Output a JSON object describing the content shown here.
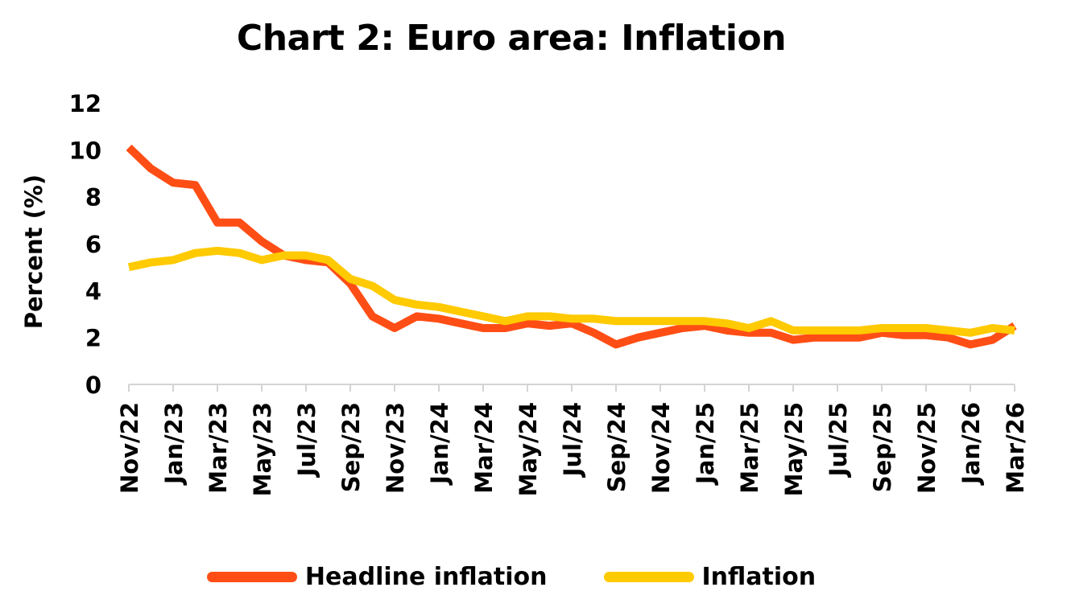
{
  "chart_data": {
    "type": "line",
    "title": "Chart 2: Euro area: Inflation",
    "ylabel": "Percent (%)",
    "xlabel": "",
    "ylim": [
      0,
      12
    ],
    "yticks": [
      0,
      2,
      4,
      6,
      8,
      10,
      12
    ],
    "x": [
      "Nov/22",
      "Dec/22",
      "Jan/23",
      "Feb/23",
      "Mar/23",
      "Apr/23",
      "May/23",
      "Jun/23",
      "Jul/23",
      "Aug/23",
      "Sep/23",
      "Oct/23",
      "Nov/23",
      "Dec/23",
      "Jan/24",
      "Feb/24",
      "Mar/24",
      "Apr/24",
      "May/24",
      "Jun/24",
      "Jul/24",
      "Aug/24",
      "Sep/24",
      "Oct/24",
      "Nov/24",
      "Dec/24",
      "Jan/25",
      "Feb/25",
      "Mar/25",
      "Apr/25",
      "May/25",
      "Jun/25",
      "Jul/25",
      "Aug/25",
      "Sep/25",
      "Oct/25",
      "Nov/25",
      "Dec/25",
      "Jan/26",
      "Feb/26",
      "Mar/26"
    ],
    "xtick_labels": [
      "Nov/22",
      "Jan/23",
      "Mar/23",
      "May/23",
      "Jul/23",
      "Sep/23",
      "Nov/23",
      "Jan/24",
      "Mar/24",
      "May/24",
      "Jul/24",
      "Sep/24",
      "Nov/24",
      "Jan/25",
      "Mar/25",
      "May/25",
      "Jul/25",
      "Sep/25",
      "Nov/25",
      "Jan/26",
      "Mar/26"
    ],
    "series": [
      {
        "name": "Headline inflation",
        "color": "#FF4E15",
        "values": [
          10.1,
          9.2,
          8.6,
          8.5,
          6.9,
          6.9,
          6.1,
          5.5,
          5.3,
          5.2,
          4.3,
          2.9,
          2.4,
          2.9,
          2.8,
          2.6,
          2.4,
          2.4,
          2.6,
          2.5,
          2.6,
          2.2,
          1.7,
          2.0,
          2.2,
          2.4,
          2.5,
          2.3,
          2.2,
          2.2,
          1.9,
          2.0,
          2.0,
          2.0,
          2.2,
          2.1,
          2.1,
          2.0,
          1.7,
          1.9,
          2.5
        ]
      },
      {
        "name": "Inflation",
        "color": "#FFCA00",
        "values": [
          5.0,
          5.2,
          5.3,
          5.6,
          5.7,
          5.6,
          5.3,
          5.5,
          5.5,
          5.3,
          4.5,
          4.2,
          3.6,
          3.4,
          3.3,
          3.1,
          2.9,
          2.7,
          2.9,
          2.9,
          2.8,
          2.8,
          2.7,
          2.7,
          2.7,
          2.7,
          2.7,
          2.6,
          2.4,
          2.7,
          2.3,
          2.3,
          2.3,
          2.3,
          2.4,
          2.4,
          2.4,
          2.3,
          2.2,
          2.4,
          2.3
        ]
      }
    ],
    "legend_position": "bottom",
    "grid": false
  }
}
